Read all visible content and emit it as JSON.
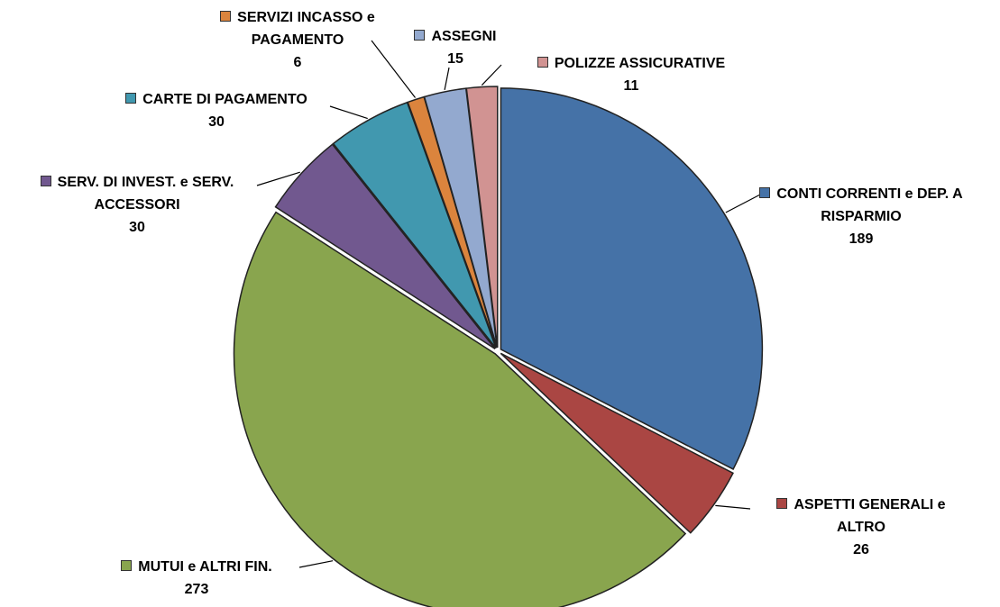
{
  "chart_data": {
    "type": "pie",
    "categories": [
      "CONTI CORRENTI e DEP. A RISPARMIO",
      "ASPETTI GENERALI e ALTRO",
      "MUTUI e ALTRI FIN.",
      "SERV. DI INVEST. e SERV. ACCESSORI",
      "CARTE DI PAGAMENTO",
      "SERVIZI INCASSO e PAGAMENTO",
      "ASSEGNI",
      "POLIZZE ASSICURATIVE"
    ],
    "values": [
      189,
      26,
      273,
      30,
      30,
      6,
      15,
      11
    ],
    "colors": [
      "#4572a7",
      "#aa4643",
      "#89a54e",
      "#71588f",
      "#4198af",
      "#db843d",
      "#93a9cf",
      "#d19392"
    ]
  }
}
